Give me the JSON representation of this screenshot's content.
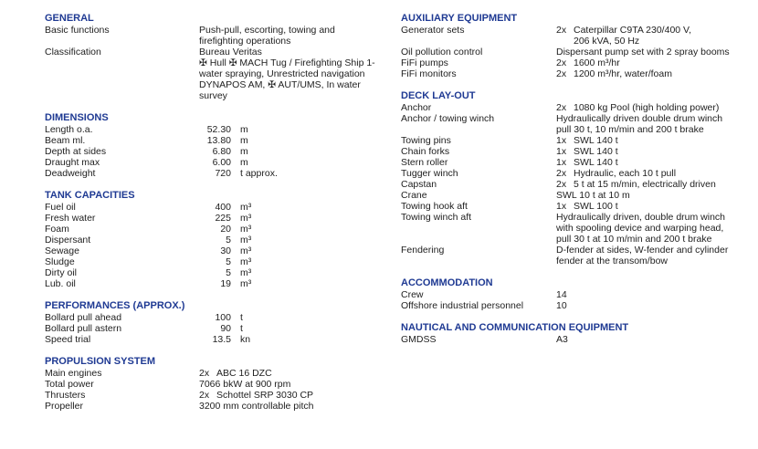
{
  "colors": {
    "heading": "#1f3a93",
    "text": "#1e1e1e"
  },
  "left": [
    {
      "title": "GENERAL",
      "rows": [
        {
          "label": "Basic functions",
          "lines": [
            "Push-pull, escorting, towing and",
            "firefighting operations"
          ]
        },
        {
          "label": "Classification",
          "lines": [
            "Bureau Veritas",
            "✠ Hull ✠ MACH Tug / Firefighting Ship 1-",
            "water spraying, Unrestricted navigation",
            "DYNAPOS AM, ✠ AUT/UMS, In water",
            "survey"
          ]
        }
      ]
    },
    {
      "title": "DIMENSIONS",
      "rows": [
        {
          "label": "Length o.a.",
          "num": "52.30",
          "unit": "m"
        },
        {
          "label": "Beam ml.",
          "num": "13.80",
          "unit": "m"
        },
        {
          "label": "Depth at sides",
          "num": "6.80",
          "unit": "m"
        },
        {
          "label": "Draught max",
          "num": "6.00",
          "unit": "m"
        },
        {
          "label": "Deadweight",
          "num": "720",
          "unit": "t approx."
        }
      ]
    },
    {
      "title": "TANK CAPACITIES",
      "rows": [
        {
          "label": "Fuel oil",
          "num": "400",
          "unit": "m³"
        },
        {
          "label": "Fresh water",
          "num": "225",
          "unit": "m³"
        },
        {
          "label": "Foam",
          "num": "20",
          "unit": "m³"
        },
        {
          "label": "Dispersant",
          "num": "5",
          "unit": "m³"
        },
        {
          "label": "Sewage",
          "num": "30",
          "unit": "m³"
        },
        {
          "label": "Sludge",
          "num": "5",
          "unit": "m³"
        },
        {
          "label": "Dirty oil",
          "num": "5",
          "unit": "m³"
        },
        {
          "label": "Lub. oil",
          "num": "19",
          "unit": "m³"
        }
      ]
    },
    {
      "title": "PERFORMANCES (APPROX.)",
      "rows": [
        {
          "label": "Bollard pull ahead",
          "num": "100",
          "unit": "t"
        },
        {
          "label": "Bollard pull astern",
          "num": "90",
          "unit": "t"
        },
        {
          "label": "Speed trial",
          "num": "13.5",
          "unit": "kn"
        }
      ]
    },
    {
      "title": "PROPULSION SYSTEM",
      "rows": [
        {
          "label": "Main engines",
          "qty": "2x",
          "lines": [
            "ABC 16 DZC"
          ]
        },
        {
          "label": "Total power",
          "lines": [
            "7066 bkW at 900 rpm"
          ]
        },
        {
          "label": "Thrusters",
          "qty": "2x",
          "lines": [
            "Schottel SRP 3030 CP"
          ]
        },
        {
          "label": "Propeller",
          "lines": [
            "3200 mm controllable pitch"
          ]
        }
      ]
    }
  ],
  "right": [
    {
      "title": "AUXILIARY EQUIPMENT",
      "rows": [
        {
          "label": "Generator sets",
          "qty": "2x",
          "lines": [
            "Caterpillar C9TA 230/400 V,",
            "206 kVA, 50 Hz"
          ]
        },
        {
          "label": "Oil pollution control",
          "lines": [
            "Dispersant pump set with 2 spray booms"
          ]
        },
        {
          "label": "FiFi pumps",
          "qty": "2x",
          "lines": [
            "1600 m³/hr"
          ]
        },
        {
          "label": "FiFi monitors",
          "qty": "2x",
          "lines": [
            "1200  m³/hr, water/foam"
          ]
        }
      ]
    },
    {
      "title": "DECK LAY-OUT",
      "rows": [
        {
          "label": "Anchor",
          "qty": "2x",
          "lines": [
            "1080 kg Pool (high holding power)"
          ]
        },
        {
          "label": "Anchor / towing winch",
          "lines": [
            "Hydraulically driven double drum winch",
            "pull 30 t, 10 m/min and 200 t brake"
          ]
        },
        {
          "label": "Towing pins",
          "qty": "1x",
          "lines": [
            "SWL 140 t"
          ]
        },
        {
          "label": "Chain forks",
          "qty": "1x",
          "lines": [
            "SWL 140 t"
          ]
        },
        {
          "label": "Stern roller",
          "qty": "1x",
          "lines": [
            "SWL 140 t"
          ]
        },
        {
          "label": "Tugger winch",
          "qty": "2x",
          "lines": [
            "Hydraulic, each 10 t pull"
          ]
        },
        {
          "label": "Capstan",
          "qty": "2x",
          "lines": [
            "5 t at 15 m/min, electrically driven"
          ]
        },
        {
          "label": "Crane",
          "lines": [
            "SWL 10 t at 10 m"
          ]
        },
        {
          "label": "Towing hook aft",
          "qty": "1x",
          "lines": [
            "SWL 100 t"
          ]
        },
        {
          "label": "Towing winch aft",
          "lines": [
            " Hydraulically driven, double drum winch",
            " with spooling device and warping head,",
            " pull 30 t at 10 m/min and 200 t brake"
          ]
        },
        {
          "label": "Fendering",
          "lines": [
            "D-fender at sides, W-fender and cylinder",
            " fender at the transom/bow"
          ]
        }
      ]
    },
    {
      "title": "ACCOMMODATION",
      "rows": [
        {
          "label": "Crew",
          "lines": [
            "14"
          ]
        },
        {
          "label": "Offshore industrial personnel",
          "lines": [
            "10"
          ]
        }
      ]
    },
    {
      "title": "NAUTICAL AND COMMUNICATION EQUIPMENT",
      "rows": [
        {
          "label": "GMDSS",
          "lines": [
            "A3"
          ]
        }
      ]
    }
  ]
}
